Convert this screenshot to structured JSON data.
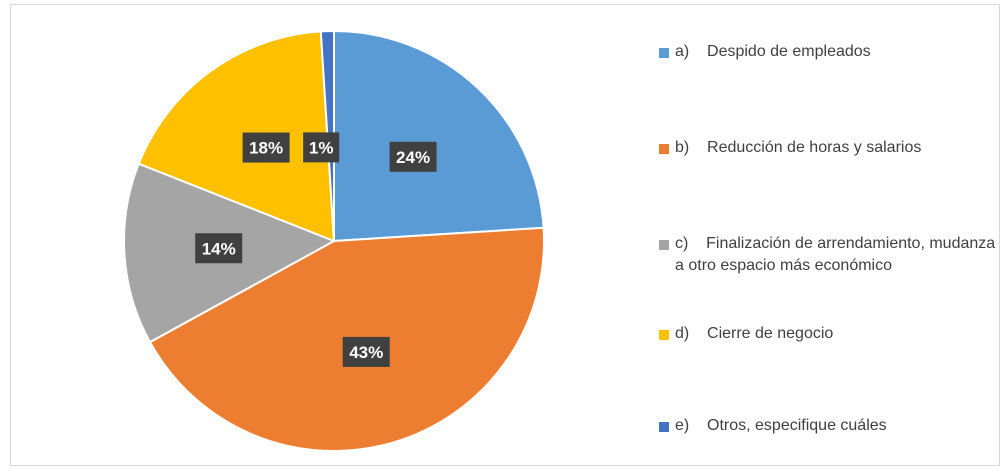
{
  "chart_data": {
    "type": "pie",
    "slices": [
      {
        "key": "a",
        "label": "a)    Despido de empleados",
        "value": 24,
        "value_label": "24%",
        "color": "#5B9BD5"
      },
      {
        "key": "b",
        "label": "b)    Reducción de horas y salarios",
        "value": 43,
        "value_label": "43%",
        "color": "#ED7D31"
      },
      {
        "key": "c",
        "label": "c)    Finalización de arrendamiento, mudanza a otro espacio más económico",
        "value": 14,
        "value_label": "14%",
        "color": "#A5A5A5"
      },
      {
        "key": "d",
        "label": "d)    Cierre de negocio",
        "value": 18,
        "value_label": "18%",
        "color": "#FFC000"
      },
      {
        "key": "e",
        "label": "e)    Otros, especifique cuáles",
        "value": 1,
        "value_label": "1%",
        "color": "#4472C4"
      }
    ],
    "data_label_style": {
      "background": "#404040",
      "text_color": "#ffffff"
    },
    "legend_position": "right",
    "start": "12 o'clock",
    "direction": "clockwise"
  }
}
